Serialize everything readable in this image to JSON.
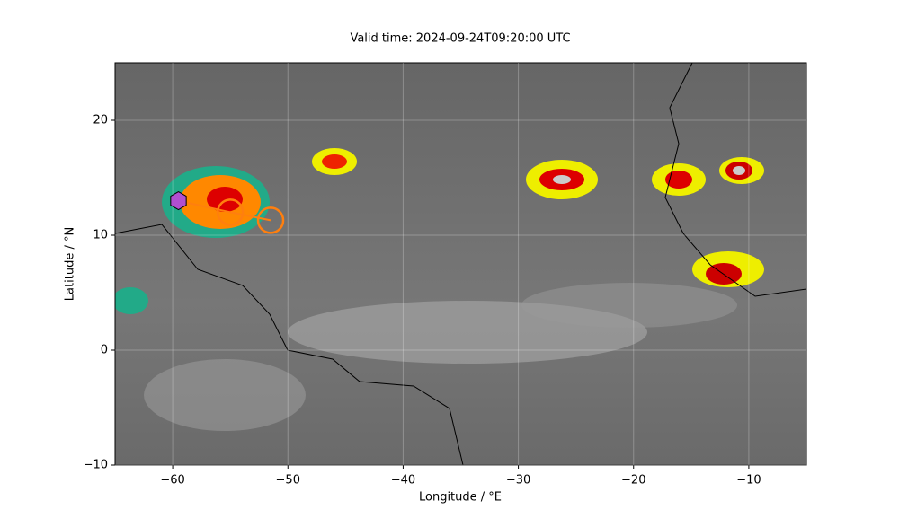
{
  "chart_data": {
    "type": "map",
    "title": "Valid time: 2024-09-24T09:20:00 UTC",
    "x_label": "Longitude / °E",
    "y_label": "Latitude / °N",
    "xlim": [
      -65,
      -5
    ],
    "ylim": [
      -10,
      25
    ],
    "xticks": [
      {
        "value": -60,
        "label": "−60"
      },
      {
        "value": -50,
        "label": "−50"
      },
      {
        "value": -40,
        "label": "−40"
      },
      {
        "value": -30,
        "label": "−30"
      },
      {
        "value": -20,
        "label": "−20"
      },
      {
        "value": -10,
        "label": "−10"
      }
    ],
    "yticks": [
      {
        "value": -10,
        "label": "−10"
      },
      0,
      10,
      20
    ],
    "grid": true,
    "track": {
      "x": [
        -59.5,
        -55,
        -51.5
      ],
      "y": [
        13,
        12,
        11.3
      ],
      "color": "#ff7f0e",
      "start_color": "#b04fd0"
    }
  }
}
